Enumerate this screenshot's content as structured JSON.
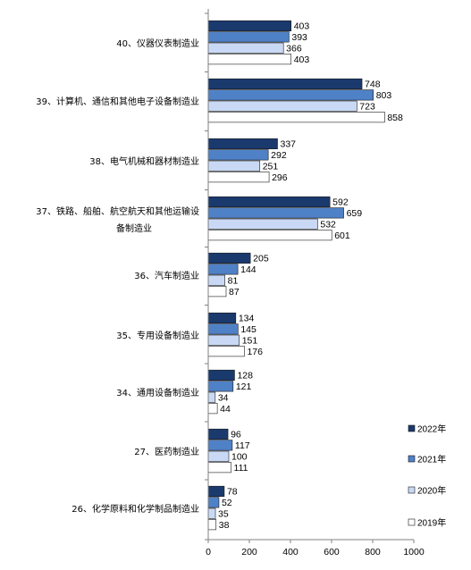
{
  "chart_data": {
    "type": "bar",
    "orientation": "horizontal",
    "categories": [
      "40、仪器仪表制造业",
      "39、计算机、通信和其他电子设备制造业",
      "38、电气机械和器材制造业",
      "37、铁路、船舶、航空航天和其他运输设备制造业",
      "36、汽车制造业",
      "35、专用设备制造业",
      "34、通用设备制造业",
      "27、医药制造业",
      "26、化学原料和化学制品制造业"
    ],
    "series": [
      {
        "name": "2022年",
        "color": "#1a3a6e",
        "values": [
          403,
          748,
          337,
          592,
          205,
          134,
          128,
          96,
          78
        ]
      },
      {
        "name": "2021年",
        "color": "#4f81c7",
        "values": [
          393,
          803,
          292,
          659,
          144,
          145,
          121,
          117,
          52
        ]
      },
      {
        "name": "2020年",
        "color": "#c9d9f5",
        "values": [
          366,
          723,
          251,
          532,
          81,
          151,
          34,
          100,
          35
        ]
      },
      {
        "name": "2019年",
        "color": "#ffffff",
        "values": [
          403,
          858,
          296,
          601,
          87,
          176,
          44,
          111,
          38
        ]
      }
    ],
    "xlim": [
      0,
      1000
    ],
    "xticks": [
      0,
      200,
      400,
      600,
      800,
      1000
    ],
    "legend": "right",
    "grid": false
  }
}
